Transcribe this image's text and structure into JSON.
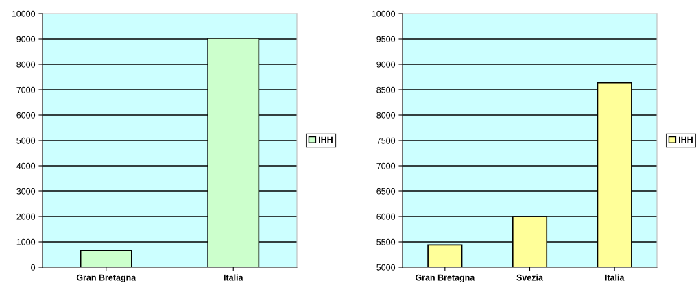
{
  "chart_data": [
    {
      "type": "bar",
      "categories": [
        "Gran Bretagna",
        "Italia"
      ],
      "series": [
        {
          "name": "IHH",
          "color": "#ccffcc",
          "values": [
            650,
            9030
          ]
        }
      ],
      "ylim": [
        0,
        10000
      ],
      "yticks": [
        0,
        1000,
        2000,
        3000,
        4000,
        5000,
        6000,
        7000,
        8000,
        9000,
        10000
      ],
      "grid": "y",
      "legend": "right"
    },
    {
      "type": "bar",
      "categories": [
        "Gran Bretagna",
        "Svezia",
        "Italia"
      ],
      "series": [
        {
          "name": "IHH",
          "color": "#ffff99",
          "values": [
            5440,
            6000,
            8640
          ]
        }
      ],
      "ylim": [
        5000,
        10000
      ],
      "yticks": [
        5000,
        5500,
        6000,
        6500,
        7000,
        7500,
        8000,
        8500,
        9000,
        9500,
        10000
      ],
      "grid": "y",
      "legend": "right"
    }
  ]
}
